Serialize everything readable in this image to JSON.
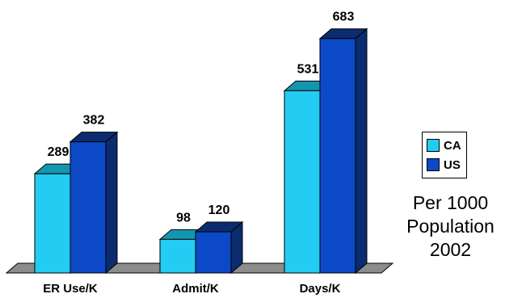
{
  "chart_data": {
    "type": "bar",
    "categories": [
      "ER Use/K",
      "Admit/K",
      "Days/K"
    ],
    "series": [
      {
        "name": "CA",
        "values": [
          289,
          98,
          531
        ],
        "color": "#22ccf2"
      },
      {
        "name": "US",
        "values": [
          382,
          120,
          683
        ],
        "color": "#0c49c6"
      }
    ],
    "legend_position": "right",
    "grid": false,
    "three_d": true
  },
  "colors": {
    "floor": "#8c8c8c",
    "ca_side": "#1596b0",
    "us_side": "#0b2c6e"
  },
  "annotation": {
    "lines": [
      "Per 1000",
      "Population",
      "2002"
    ]
  }
}
